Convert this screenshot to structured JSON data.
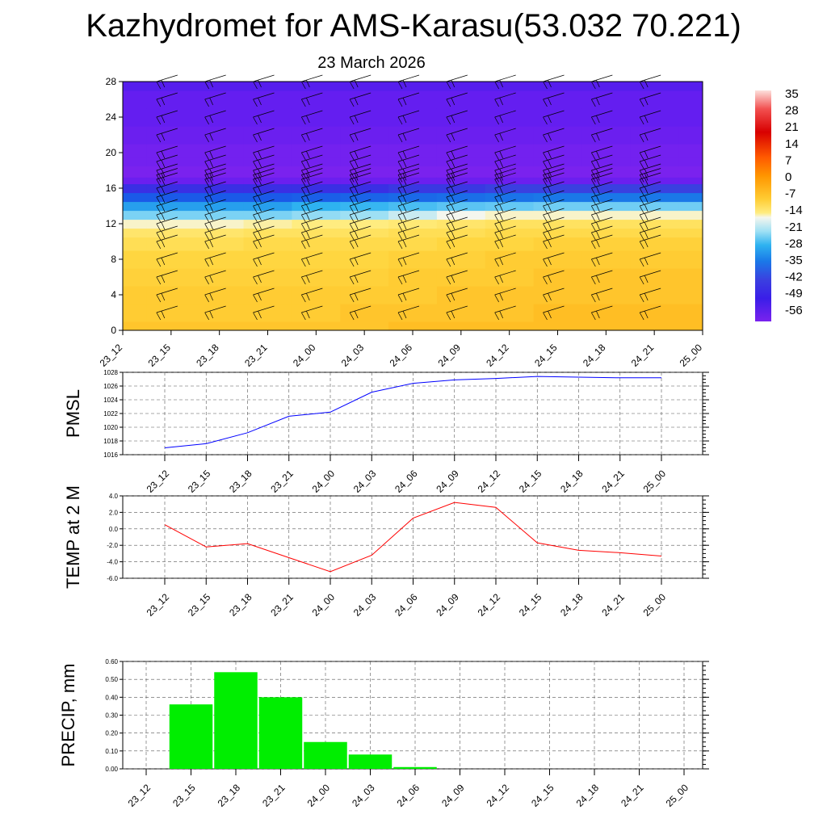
{
  "title": "Kazhydromet for AMS-Karasu(53.032 70.221)",
  "subtitle": "23 March 2026",
  "time_labels": [
    "23_12",
    "23_15",
    "23_18",
    "23_21",
    "24_00",
    "24_03",
    "24_06",
    "24_09",
    "24_12",
    "24_15",
    "24_18",
    "24_21",
    "25_00"
  ],
  "colorbar": {
    "labels": [
      "35",
      "28",
      "21",
      "14",
      "7",
      "0",
      "-7",
      "-14",
      "-21",
      "-28",
      "-35",
      "-42",
      "-49",
      "-56"
    ]
  },
  "chart_data": [
    {
      "type": "heatmap",
      "y_ticks": [
        0,
        4,
        8,
        12,
        16,
        20,
        24,
        28
      ],
      "ylim": [
        0,
        28
      ],
      "temperature_field_deg_c": {
        "levels": [
          0,
          2,
          4,
          6,
          8,
          10,
          11,
          12,
          13,
          14,
          15,
          16,
          17,
          17.5,
          18,
          19,
          20,
          22,
          24,
          26,
          28
        ],
        "by_time_step": [
          [
            -3,
            -4,
            -4,
            -5,
            -6,
            -8,
            -10,
            -14,
            -22,
            -32,
            -42,
            -50,
            -56,
            -58,
            -58,
            -57,
            -57,
            -56,
            -55,
            -55,
            -54
          ],
          [
            -3,
            -4,
            -4,
            -5,
            -6,
            -8,
            -10,
            -14,
            -22,
            -32,
            -42,
            -50,
            -56,
            -58,
            -58,
            -57,
            -57,
            -56,
            -55,
            -55,
            -54
          ],
          [
            -3,
            -4,
            -4,
            -5,
            -6,
            -8,
            -10,
            -14,
            -22,
            -32,
            -42,
            -50,
            -56,
            -58,
            -58,
            -57,
            -57,
            -56,
            -55,
            -55,
            -54
          ],
          [
            -3,
            -4,
            -4,
            -5,
            -6,
            -7,
            -9,
            -13,
            -22,
            -32,
            -42,
            -50,
            -56,
            -58,
            -58,
            -57,
            -57,
            -56,
            -55,
            -55,
            -54
          ],
          [
            -3,
            -4,
            -4,
            -5,
            -6,
            -7,
            -9,
            -12,
            -20,
            -30,
            -41,
            -50,
            -56,
            -58,
            -58,
            -57,
            -57,
            -56,
            -55,
            -55,
            -54
          ],
          [
            -3,
            -3,
            -4,
            -5,
            -6,
            -7,
            -9,
            -12,
            -19,
            -29,
            -40,
            -50,
            -56,
            -58,
            -58,
            -57,
            -57,
            -56,
            -55,
            -55,
            -54
          ],
          [
            -2,
            -3,
            -4,
            -4,
            -5,
            -7,
            -8,
            -11,
            -17,
            -27,
            -39,
            -49,
            -56,
            -58,
            -58,
            -57,
            -57,
            -56,
            -55,
            -55,
            -54
          ],
          [
            -2,
            -3,
            -3,
            -4,
            -5,
            -6,
            -8,
            -10,
            -15,
            -25,
            -38,
            -49,
            -56,
            -58,
            -58,
            -57,
            -57,
            -56,
            -55,
            -55,
            -54
          ],
          [
            -2,
            -3,
            -3,
            -4,
            -4,
            -6,
            -7,
            -9,
            -14,
            -24,
            -37,
            -48,
            -56,
            -58,
            -58,
            -57,
            -57,
            -56,
            -55,
            -55,
            -54
          ],
          [
            -2,
            -2,
            -3,
            -3,
            -4,
            -5,
            -7,
            -9,
            -14,
            -23,
            -36,
            -48,
            -56,
            -58,
            -58,
            -57,
            -57,
            -56,
            -55,
            -55,
            -54
          ],
          [
            -2,
            -2,
            -3,
            -3,
            -4,
            -5,
            -7,
            -9,
            -14,
            -23,
            -36,
            -48,
            -56,
            -58,
            -58,
            -57,
            -57,
            -56,
            -55,
            -55,
            -54
          ],
          [
            -2,
            -2,
            -3,
            -3,
            -4,
            -5,
            -7,
            -9,
            -14,
            -23,
            -36,
            -48,
            -56,
            -58,
            -58,
            -57,
            -57,
            -56,
            -55,
            -55,
            -54
          ],
          [
            -2,
            -2,
            -3,
            -3,
            -4,
            -5,
            -7,
            -9,
            -14,
            -23,
            -36,
            -48,
            -56,
            -58,
            -58,
            -57,
            -57,
            -56,
            -55,
            -55,
            -54
          ]
        ]
      }
    },
    {
      "type": "line",
      "ylabel": "PMSL",
      "y_ticks": [
        "1016",
        "1018",
        "1020",
        "1022",
        "1024",
        "1026",
        "1028"
      ],
      "ylim": [
        1016,
        1028
      ],
      "series": [
        {
          "color": "#0000ff",
          "values": [
            1017.0,
            1017.6,
            1019.2,
            1021.6,
            1022.2,
            1025.1,
            1026.4,
            1026.9,
            1027.1,
            1027.4,
            1027.3,
            1027.2,
            1027.2
          ]
        }
      ]
    },
    {
      "type": "line",
      "ylabel": "TEMP at 2 M",
      "y_ticks": [
        "-6.0",
        "-4.0",
        "-2.0",
        "0.0",
        "2.0",
        "4.0"
      ],
      "ylim": [
        -6,
        4
      ],
      "series": [
        {
          "color": "#ff0000",
          "values": [
            0.5,
            -2.2,
            -1.8,
            -3.5,
            -5.2,
            -3.2,
            1.3,
            3.2,
            2.6,
            -1.7,
            -2.6,
            -2.9,
            -3.3
          ]
        }
      ]
    },
    {
      "type": "bar",
      "ylabel": "PRECIP, mm",
      "y_ticks": [
        "0.00",
        "0.10",
        "0.20",
        "0.30",
        "0.40",
        "0.50",
        "0.60"
      ],
      "ylim": [
        0,
        0.6
      ],
      "values": [
        0.0,
        0.36,
        0.54,
        0.4,
        0.15,
        0.08,
        0.01,
        0.0,
        0.0,
        0.0,
        0.0,
        0.0,
        0.0
      ],
      "color": "#00ee00"
    }
  ]
}
